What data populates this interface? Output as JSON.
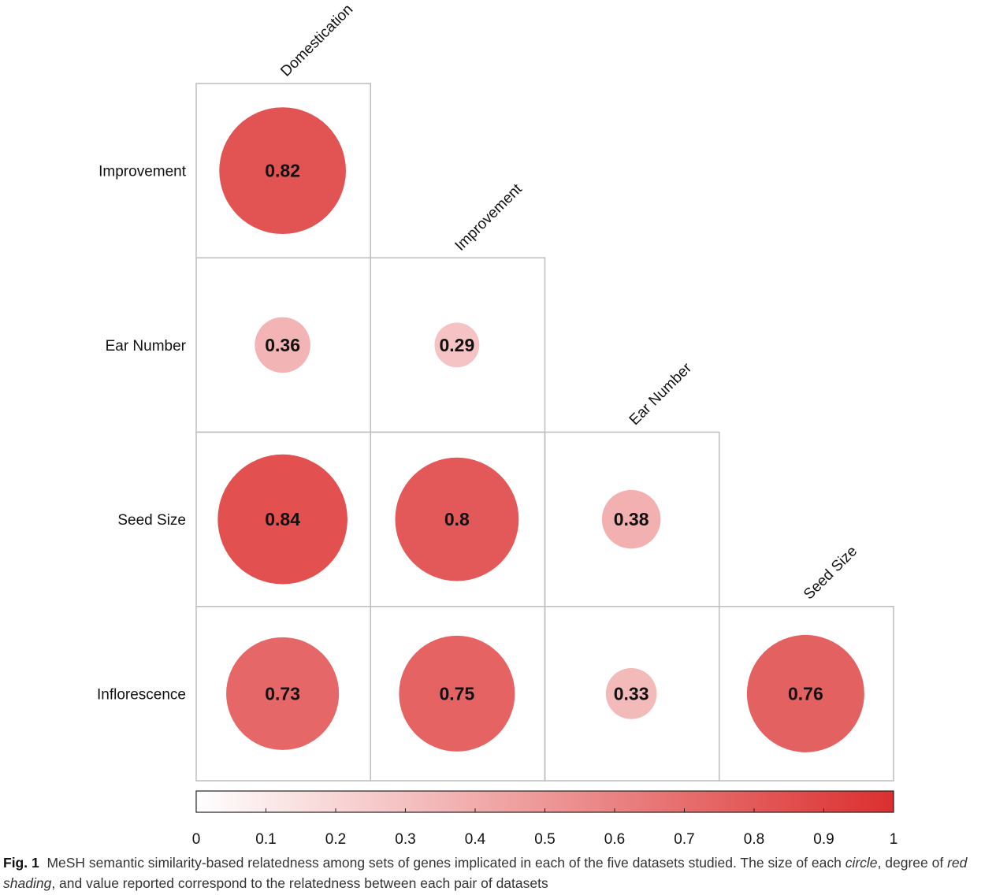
{
  "chart_data": {
    "type": "heatmap",
    "subtype": "correlogram-lower-triangle",
    "row_labels": [
      "Improvement",
      "Ear Number",
      "Seed Size",
      "Inflorescence"
    ],
    "col_labels": [
      "Domestication",
      "Improvement",
      "Ear Number",
      "Seed Size"
    ],
    "values": [
      [
        0.82,
        null,
        null,
        null
      ],
      [
        0.36,
        0.29,
        null,
        null
      ],
      [
        0.84,
        0.8,
        0.38,
        null
      ],
      [
        0.73,
        0.75,
        0.33,
        0.76
      ]
    ],
    "value_labels": [
      [
        "0.82",
        "",
        "",
        ""
      ],
      [
        "0.36",
        "0.29",
        "",
        ""
      ],
      [
        "0.84",
        "0.8",
        "0.38",
        ""
      ],
      [
        "0.73",
        "0.75",
        "0.33",
        "0.76"
      ]
    ],
    "colorbar": {
      "range": [
        0,
        1
      ],
      "ticks": [
        "0",
        "0.1",
        "0.2",
        "0.3",
        "0.4",
        "0.5",
        "0.6",
        "0.7",
        "0.8",
        "0.9",
        "1"
      ],
      "color_low": "#ffffff",
      "color_high": "#dc2f2f",
      "orientation": "horizontal",
      "placement": "bottom"
    },
    "encoding": "circle size and red shading proportional to value",
    "colors": {
      "accent": "#dc2f2f",
      "grid": "#bdbdbd"
    }
  },
  "caption": {
    "figure_number": "Fig. 1",
    "part1": "MeSH semantic similarity-based relatedness among sets of genes implicated in each of the five datasets studied. The size of each ",
    "italic1": "circle",
    "part2": ", degree of ",
    "italic2": "red shading",
    "part3": ", and value reported correspond to the relatedness between each pair of datasets"
  }
}
